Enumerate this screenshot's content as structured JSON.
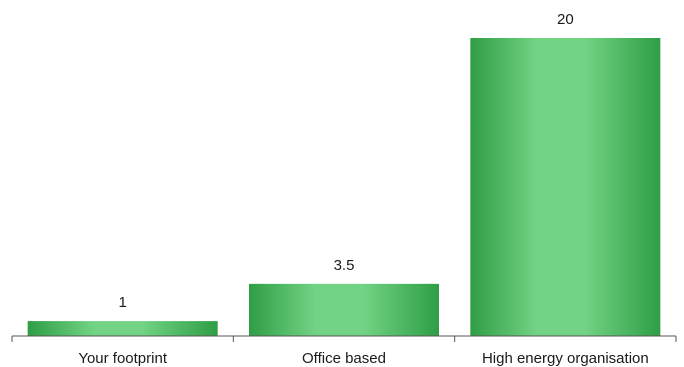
{
  "chart_data": {
    "type": "bar",
    "title": "",
    "xlabel": "",
    "ylabel": "",
    "categories": [
      "Your footprint",
      "Office based",
      "High energy organisation"
    ],
    "values": [
      1,
      3.5,
      20
    ],
    "data_labels": [
      "1",
      "3.5",
      "20"
    ],
    "ylim": [
      0,
      20
    ],
    "grid": false,
    "legend": "none",
    "colors": {
      "bar_dark": "#2e9e45",
      "bar_light": "#72d384",
      "axis": "#555555"
    }
  }
}
